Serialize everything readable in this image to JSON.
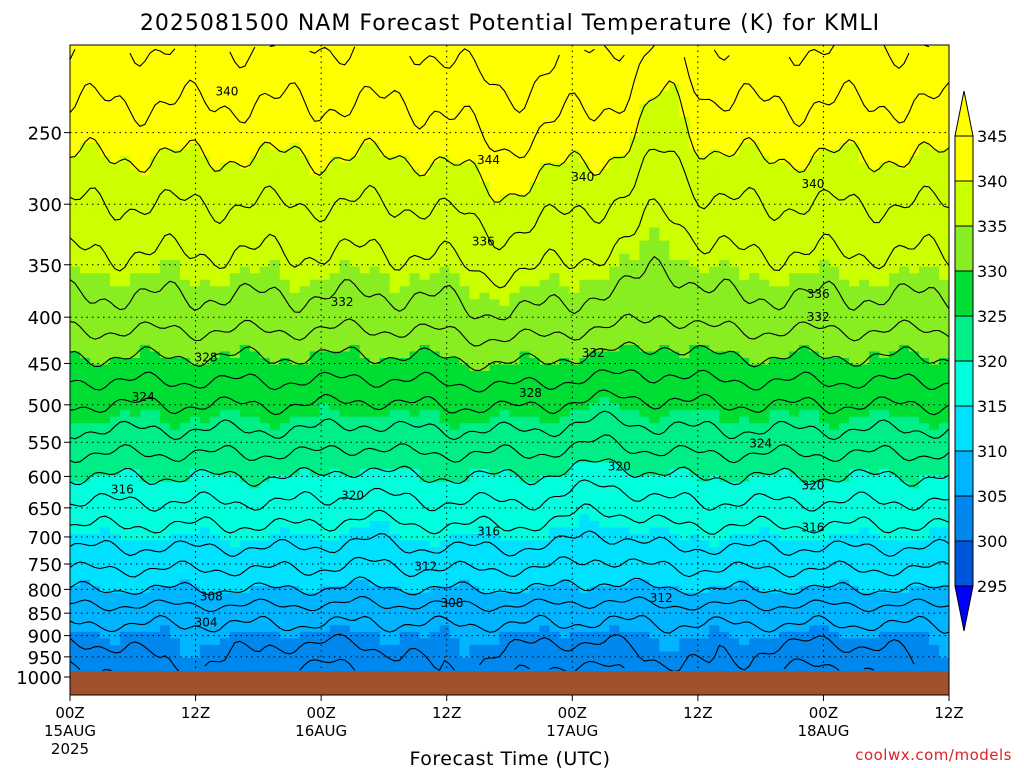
{
  "chart_data": {
    "type": "heatmap",
    "title": "2025081500 NAM Forecast Potential Temperature (K) for KMLI",
    "xlabel": "Forecast Time (UTC)",
    "ylabel": "",
    "credit": "coolwx.com/models",
    "x_ticks": [
      {
        "hour": 0,
        "label": "00Z",
        "sub": "15AUG",
        "sub2": "2025"
      },
      {
        "hour": 12,
        "label": "12Z",
        "sub": "",
        "sub2": ""
      },
      {
        "hour": 24,
        "label": "00Z",
        "sub": "16AUG",
        "sub2": ""
      },
      {
        "hour": 36,
        "label": "12Z",
        "sub": "",
        "sub2": ""
      },
      {
        "hour": 48,
        "label": "00Z",
        "sub": "17AUG",
        "sub2": ""
      },
      {
        "hour": 60,
        "label": "12Z",
        "sub": "",
        "sub2": ""
      },
      {
        "hour": 72,
        "label": "00Z",
        "sub": "18AUG",
        "sub2": ""
      },
      {
        "hour": 84,
        "label": "12Z",
        "sub": "",
        "sub2": ""
      }
    ],
    "xlim": [
      0,
      84
    ],
    "y_ticks": [
      250,
      300,
      350,
      400,
      450,
      500,
      550,
      600,
      650,
      700,
      750,
      800,
      850,
      900,
      950,
      1000
    ],
    "ylim": [
      200,
      1000
    ],
    "y_scale": "log-pressure (inverted)",
    "grid": true,
    "colorbar": {
      "labels": [
        "345",
        "340",
        "335",
        "330",
        "325",
        "320",
        "315",
        "310",
        "305",
        "300",
        "295"
      ],
      "levels": [
        295,
        300,
        305,
        310,
        315,
        320,
        325,
        330,
        335,
        340,
        345
      ],
      "colors": [
        "#0000ff",
        "#0055dd",
        "#0088ee",
        "#00b4ff",
        "#00e0ff",
        "#00ffdd",
        "#00ee88",
        "#00dd33",
        "#88ee22",
        "#ccff00",
        "#ffff00",
        "#ffff00"
      ]
    },
    "contour_labels": [
      {
        "text": "340",
        "hour": 15,
        "p": 225
      },
      {
        "text": "344",
        "hour": 40,
        "p": 268
      },
      {
        "text": "340",
        "hour": 49,
        "p": 280
      },
      {
        "text": "340",
        "hour": 71,
        "p": 285
      },
      {
        "text": "336",
        "hour": 39.5,
        "p": 330
      },
      {
        "text": "336",
        "hour": 71.5,
        "p": 377
      },
      {
        "text": "332",
        "hour": 26,
        "p": 385
      },
      {
        "text": "332",
        "hour": 71.5,
        "p": 400
      },
      {
        "text": "332",
        "hour": 50,
        "p": 438
      },
      {
        "text": "328",
        "hour": 13,
        "p": 443
      },
      {
        "text": "328",
        "hour": 44,
        "p": 485
      },
      {
        "text": "324",
        "hour": 7,
        "p": 490
      },
      {
        "text": "324",
        "hour": 66,
        "p": 552
      },
      {
        "text": "320",
        "hour": 52.5,
        "p": 585
      },
      {
        "text": "320",
        "hour": 71,
        "p": 614
      },
      {
        "text": "320",
        "hour": 27,
        "p": 630
      },
      {
        "text": "316",
        "hour": 5,
        "p": 620
      },
      {
        "text": "316",
        "hour": 40,
        "p": 690
      },
      {
        "text": "316",
        "hour": 71,
        "p": 683
      },
      {
        "text": "312",
        "hour": 34,
        "p": 755
      },
      {
        "text": "312",
        "hour": 56.5,
        "p": 818
      },
      {
        "text": "308",
        "hour": 13.5,
        "p": 815
      },
      {
        "text": "308",
        "hour": 36.5,
        "p": 828
      },
      {
        "text": "304",
        "hour": 13,
        "p": 870
      }
    ],
    "theta_by_level": [
      {
        "p": 200,
        "theta": 344
      },
      {
        "p": 250,
        "theta": 341
      },
      {
        "p": 300,
        "theta": 338
      },
      {
        "p": 350,
        "theta": 335.5
      },
      {
        "p": 400,
        "theta": 333
      },
      {
        "p": 450,
        "theta": 329.5
      },
      {
        "p": 500,
        "theta": 326
      },
      {
        "p": 550,
        "theta": 323
      },
      {
        "p": 600,
        "theta": 320
      },
      {
        "p": 650,
        "theta": 317.5
      },
      {
        "p": 700,
        "theta": 315
      },
      {
        "p": 750,
        "theta": 312.5
      },
      {
        "p": 800,
        "theta": 310
      },
      {
        "p": 850,
        "theta": 307
      },
      {
        "p": 900,
        "theta": 305
      },
      {
        "p": 950,
        "theta": 304
      },
      {
        "p": 1000,
        "theta": 303
      }
    ]
  }
}
